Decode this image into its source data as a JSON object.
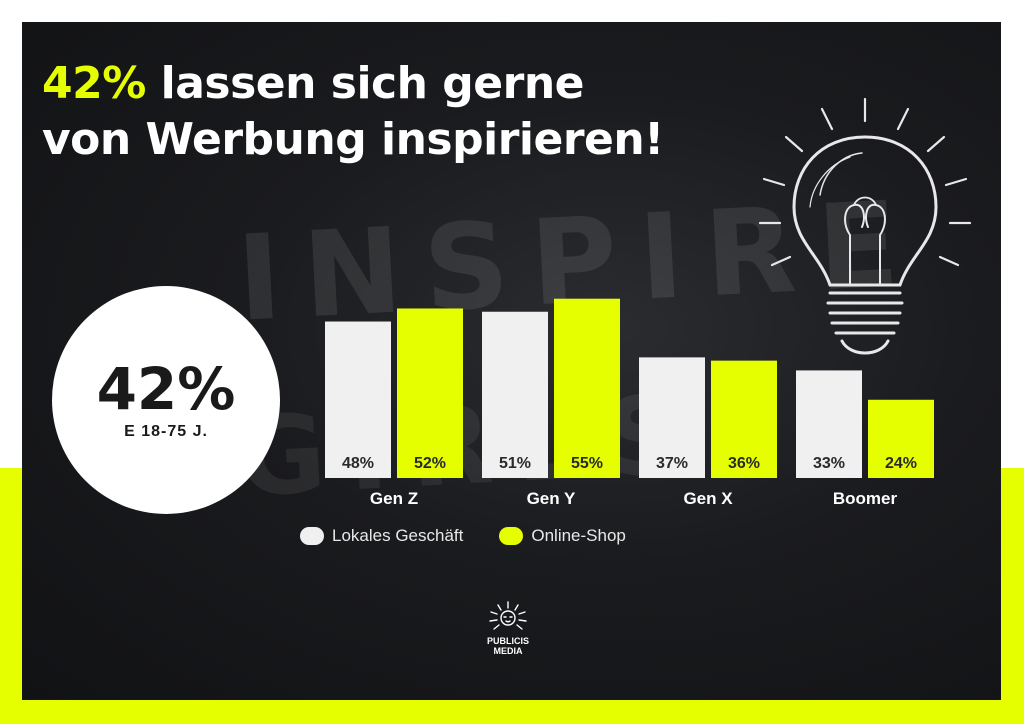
{
  "header": {
    "title_highlight": "42%",
    "title_line1_rest": " lassen sich gerne",
    "title_line2": "von Werbung inspirieren!"
  },
  "background": {
    "word1": "INSPIRE",
    "word2": "GIRLS"
  },
  "badge": {
    "value": "42%",
    "sublabel": "E 18-75 J."
  },
  "colors": {
    "accent": "#e6ff00",
    "bar_local": "#f0f0f0",
    "bar_online": "#e6ff00",
    "panel": "#1a1b1e"
  },
  "icons": [
    "light-bulb-icon",
    "publicis-lion-logo-icon"
  ],
  "chart_data": {
    "type": "bar",
    "categories": [
      "Gen Z",
      "Gen Y",
      "Gen X",
      "Boomer"
    ],
    "series": [
      {
        "name": "Lokales Geschäft",
        "values": [
          48,
          51,
          37,
          33
        ],
        "labels": [
          "48%",
          "51%",
          "37%",
          "33%"
        ],
        "color": "#f0f0f0"
      },
      {
        "name": "Online-Shop",
        "values": [
          52,
          55,
          36,
          24
        ],
        "labels": [
          "52%",
          "55%",
          "36%",
          "24%"
        ],
        "color": "#e6ff00"
      }
    ],
    "grid": false,
    "legend": "bottom"
  },
  "footer": {
    "logo_line1": "PUBLICIS",
    "logo_line2": "MEDIA"
  }
}
